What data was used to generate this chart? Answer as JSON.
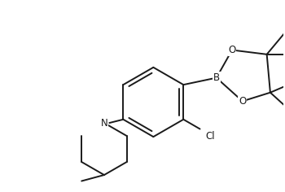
{
  "bg_color": "#ffffff",
  "line_color": "#1a1a1a",
  "line_width": 1.4,
  "figsize": [
    3.5,
    2.36
  ],
  "dpi": 100,
  "text_fontsize": 8.5,
  "atoms": {
    "B": "B",
    "O": "O",
    "Cl": "Cl",
    "N": "N"
  }
}
